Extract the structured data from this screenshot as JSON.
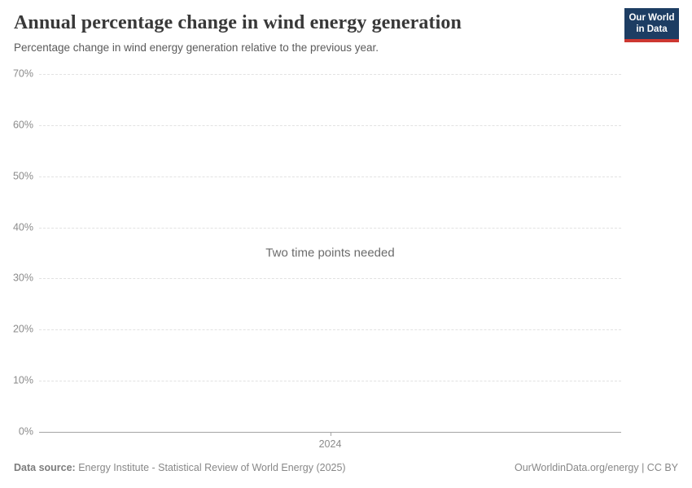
{
  "header": {
    "title": "Annual percentage change in wind energy generation",
    "subtitle": "Percentage change in wind energy generation relative to the previous year.",
    "logo": {
      "line1": "Our World",
      "line2": "in Data",
      "bg_color": "#1d3d63",
      "accent_color": "#cd3731"
    }
  },
  "chart_data": {
    "type": "line",
    "title": "Annual percentage change in wind energy generation",
    "series": [],
    "message": "Two time points needed",
    "x_ticks": [
      "2024"
    ],
    "y_ticks": [
      "70%",
      "60%",
      "50%",
      "40%",
      "30%",
      "20%",
      "10%",
      "0%"
    ],
    "y_tick_values": [
      70,
      60,
      50,
      40,
      30,
      20,
      10,
      0
    ],
    "ylim": [
      0,
      70
    ],
    "grid": "horizontal dashed, solid baseline at 0%",
    "legend": "none"
  },
  "footer": {
    "source_label": "Data source:",
    "source_text": " Energy Institute - Statistical Review of World Energy (2025)",
    "right_text": "OurWorldinData.org/energy | CC BY"
  }
}
